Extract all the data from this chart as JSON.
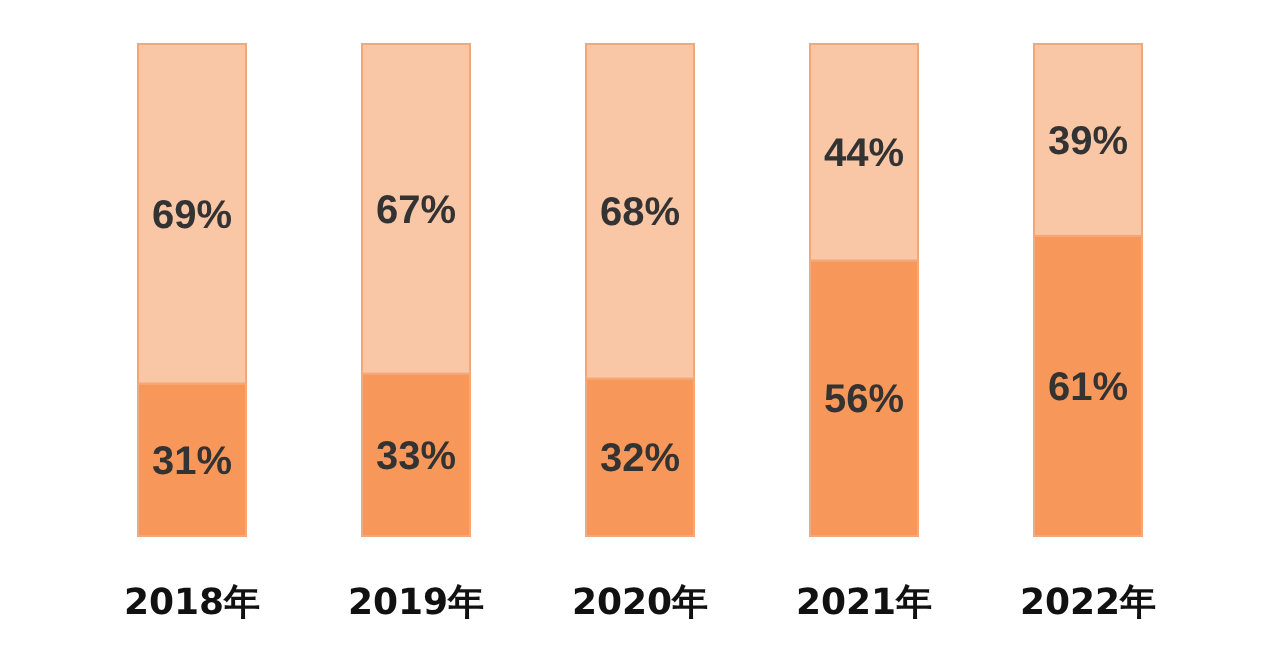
{
  "chart_data": {
    "type": "bar",
    "stacked": true,
    "categories": [
      "2018年",
      "2019年",
      "2020年",
      "2021年",
      "2022年"
    ],
    "series": [
      {
        "color": "#f7985a",
        "values": [
          31,
          33,
          32,
          56,
          61
        ],
        "value_labels": [
          "31%",
          "33%",
          "32%",
          "56%",
          "61%"
        ]
      },
      {
        "color": "#f9c6a6",
        "values": [
          69,
          67,
          68,
          44,
          39
        ],
        "value_labels": [
          "69%",
          "67%",
          "68%",
          "44%",
          "39%"
        ]
      }
    ]
  }
}
